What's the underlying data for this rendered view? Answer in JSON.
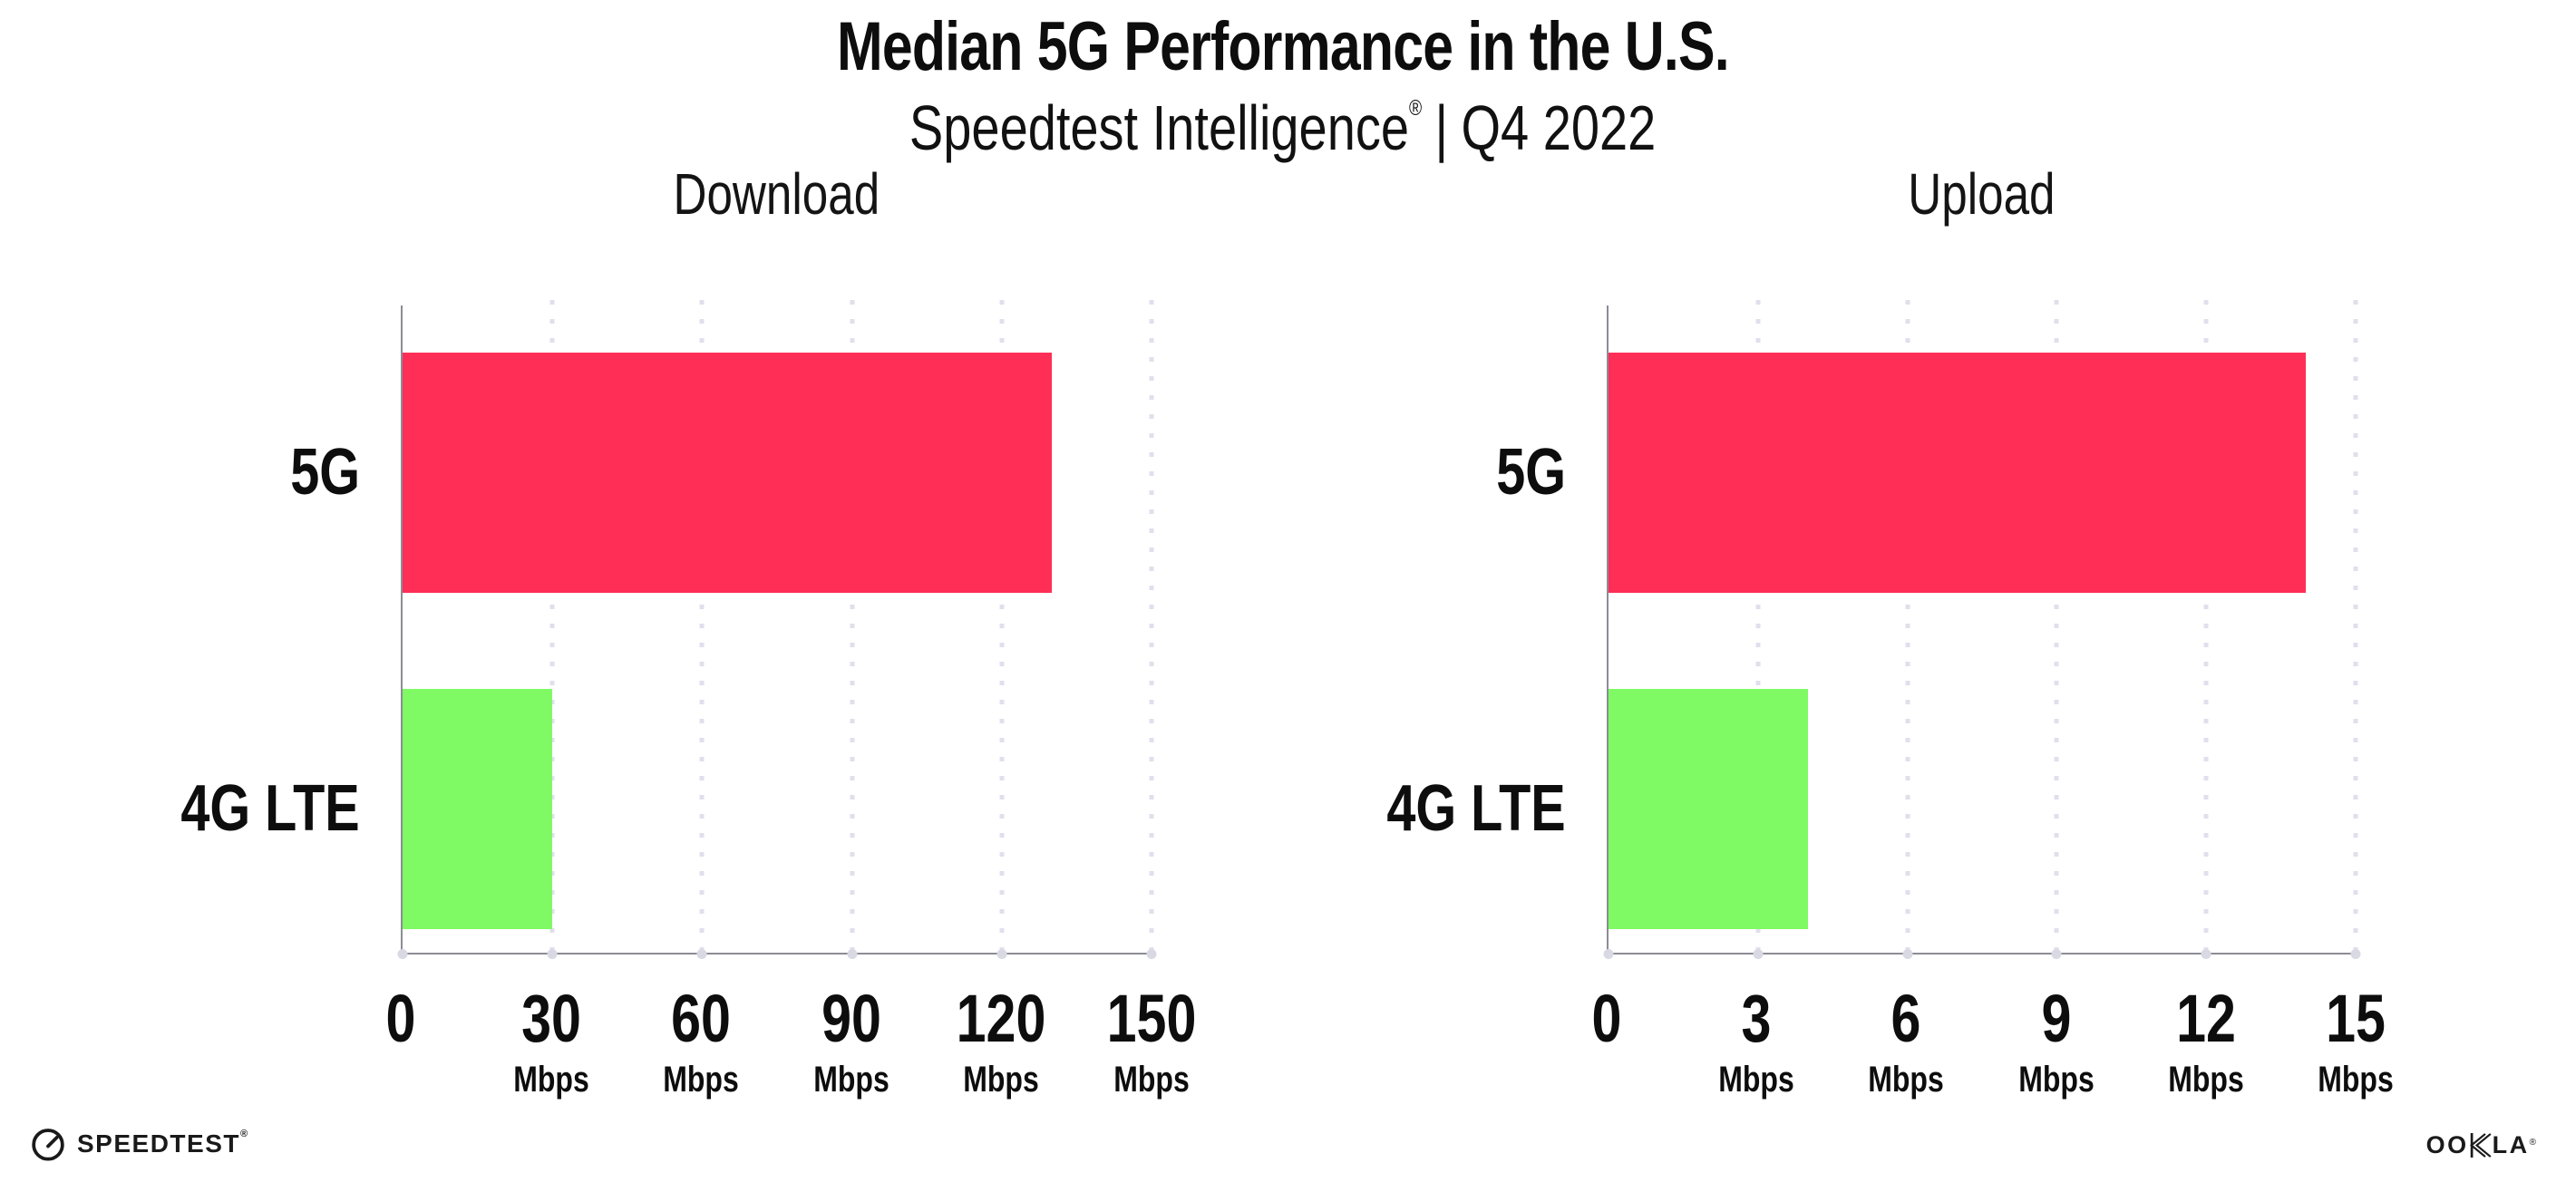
{
  "header": {
    "title": "Median 5G Performance in the U.S.",
    "subtitle": {
      "brand": "Speedtest Intelligence",
      "registered_mark": "®",
      "separator": "|",
      "period": "Q4 2022"
    }
  },
  "chart_data": [
    {
      "type": "bar",
      "orientation": "horizontal",
      "title": "Download",
      "categories": [
        "5G",
        "4G LTE"
      ],
      "values": [
        130,
        30
      ],
      "unit": "Mbps",
      "xlabel": "",
      "ylabel": "",
      "xlim": [
        0,
        150
      ],
      "xticks": [
        0,
        30,
        60,
        90,
        120,
        150
      ],
      "bar_colors": [
        "#FF2E56",
        "#7FFA64"
      ],
      "grid": "vertical dotted gridlines at every tick",
      "legend": "none"
    },
    {
      "type": "bar",
      "orientation": "horizontal",
      "title": "Upload",
      "categories": [
        "5G",
        "4G LTE"
      ],
      "values": [
        14,
        4
      ],
      "unit": "Mbps",
      "xlabel": "",
      "ylabel": "",
      "xlim": [
        0,
        15
      ],
      "xticks": [
        0,
        3,
        6,
        9,
        12,
        15
      ],
      "bar_colors": [
        "#FF2E56",
        "#7FFA64"
      ],
      "grid": "vertical dotted gridlines at every tick",
      "legend": "none"
    }
  ],
  "footer": {
    "speedtest_logo_text": "SPEEDTEST",
    "speedtest_mark": "®",
    "ookla_logo_text_left": "OO",
    "ookla_logo_text_right": "LA",
    "ookla_logo_full": "OOKLA",
    "ookla_mark": "®"
  },
  "colors": {
    "bar_5g": "#FF2E56",
    "bar_4g_lte": "#7FFA64",
    "axis": "#8C8C94",
    "gridline": "#DFE0EC",
    "tick_dot": "#D8D9E3",
    "text": "#0D0D0D"
  }
}
